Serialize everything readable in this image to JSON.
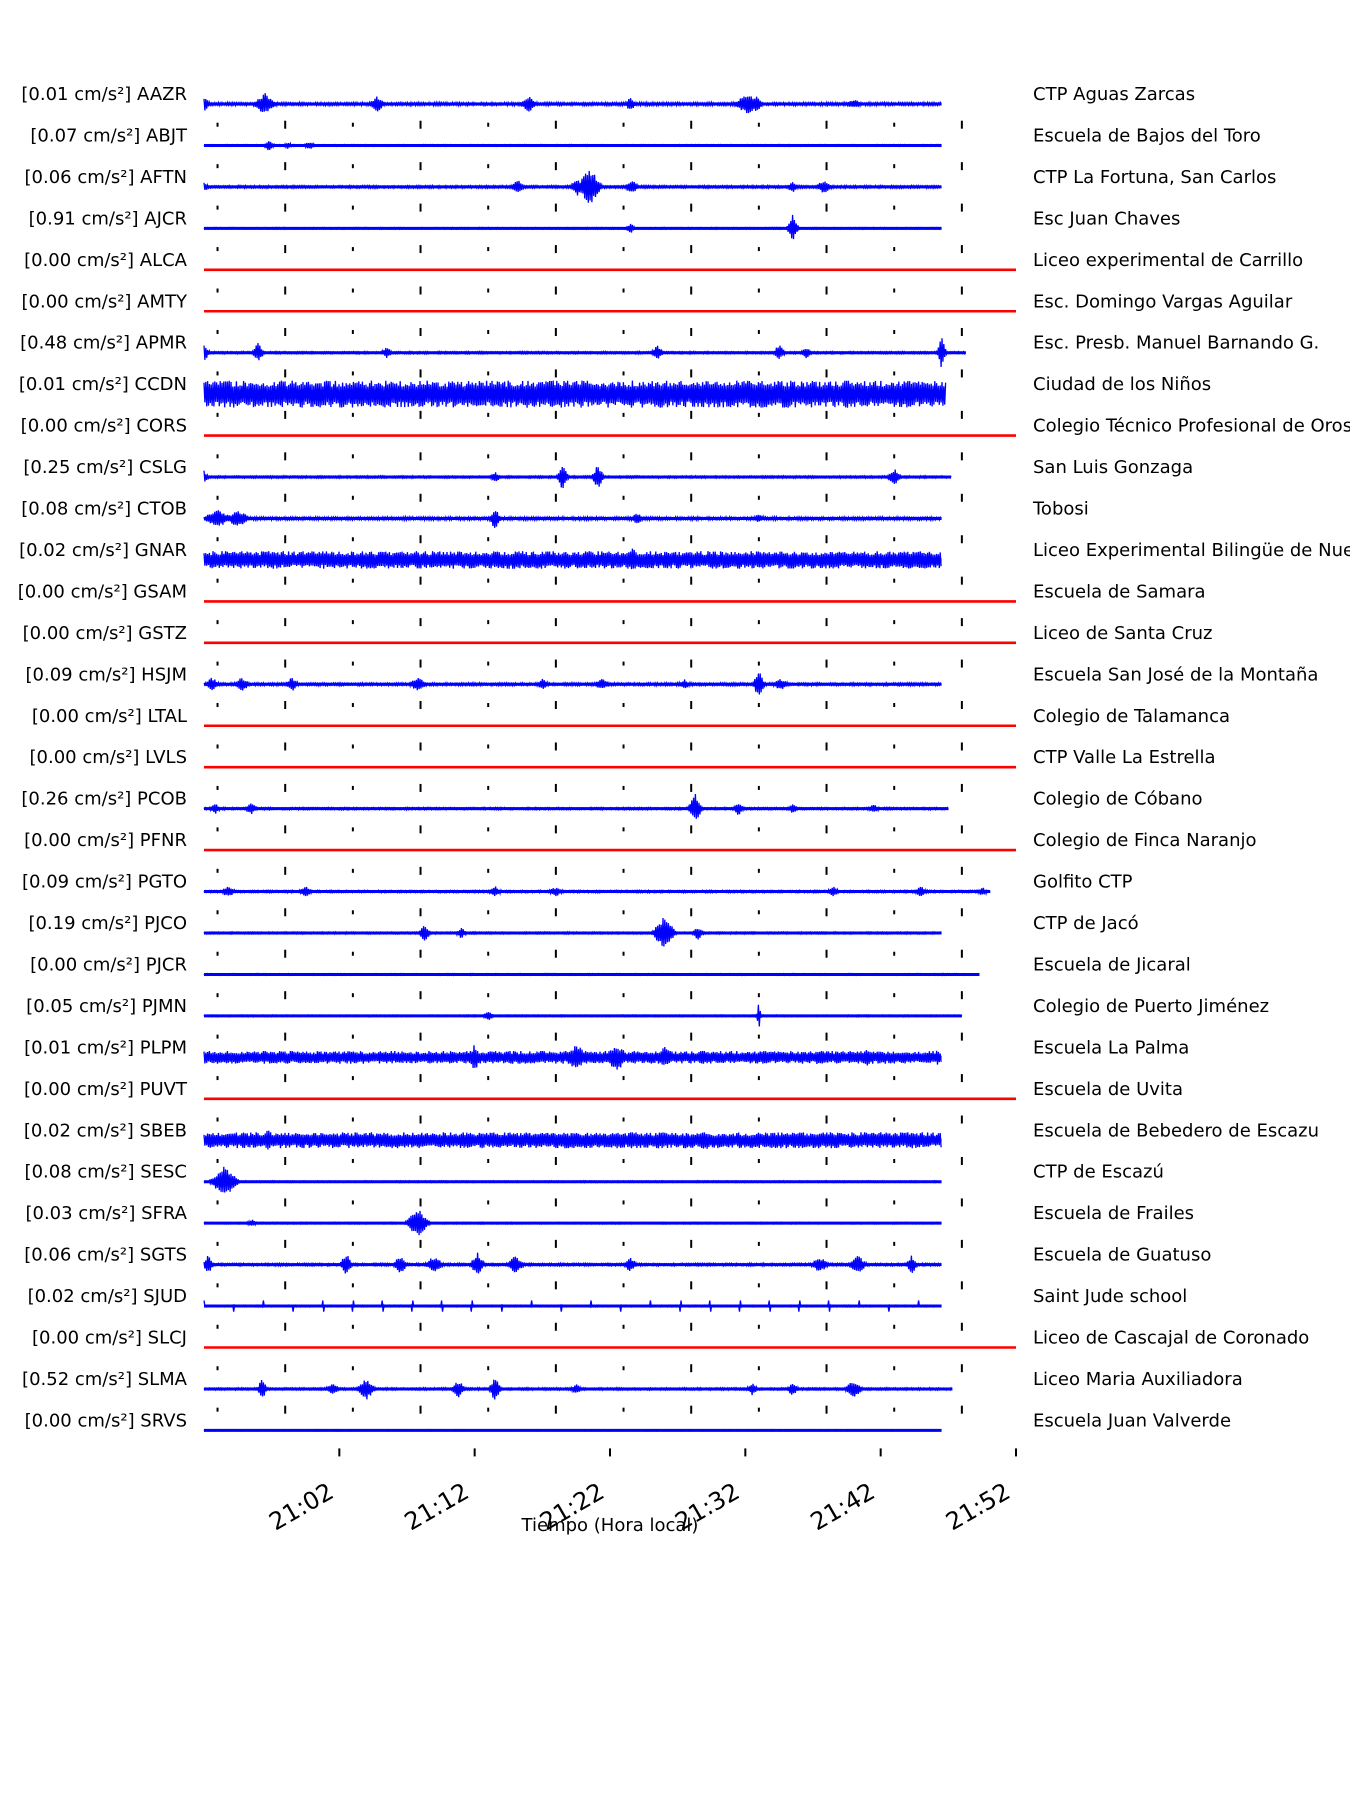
{
  "chart_data": {
    "type": "line",
    "xlabel": "Tiempo (Hora local)",
    "x_ticks": [
      "21:02",
      "21:12",
      "21:22",
      "21:32",
      "21:42",
      "21:52"
    ],
    "x_range_minutes": [
      0,
      60
    ],
    "active_color": "#0000ff",
    "inactive_color": "#ff0000",
    "stations": [
      {
        "id": "AAZR",
        "value": "[0.01 cm/s²] AAZR",
        "name": "CTP Aguas Zarcas",
        "active": true,
        "end_min": 54.5,
        "amp": 0.18,
        "noise": 0.1,
        "events": [
          [
            0,
            0.45,
            0.6
          ],
          [
            4.5,
            0.7,
            1.0
          ],
          [
            12.8,
            0.5,
            0.7
          ],
          [
            24,
            0.5,
            0.8
          ],
          [
            31.5,
            0.45,
            0.5
          ],
          [
            40.2,
            0.7,
            1.2
          ],
          [
            40.8,
            0.55,
            0.6
          ],
          [
            48,
            0.3,
            0.8
          ]
        ]
      },
      {
        "id": "ABJT",
        "value": "[0.07 cm/s²] ABJT",
        "name": "Escuela de Bajos del Toro",
        "active": true,
        "end_min": 54.5,
        "amp": 0.06,
        "noise": 0.05,
        "events": [
          [
            4.8,
            0.35,
            0.5
          ],
          [
            6.2,
            0.22,
            0.4
          ],
          [
            7.8,
            0.28,
            0.5
          ]
        ]
      },
      {
        "id": "AFTN",
        "value": "[0.06 cm/s²] AFTN",
        "name": "CTP La Fortuna, San Carlos",
        "active": true,
        "end_min": 54.5,
        "amp": 0.15,
        "noise": 0.08,
        "events": [
          [
            0,
            0.35,
            0.4
          ],
          [
            28.5,
            1.2,
            1.0
          ],
          [
            27.6,
            0.55,
            0.6
          ],
          [
            23.2,
            0.45,
            0.6
          ],
          [
            31.6,
            0.45,
            0.6
          ],
          [
            45.8,
            0.45,
            0.7
          ],
          [
            43.5,
            0.35,
            0.5
          ]
        ]
      },
      {
        "id": "AJCR",
        "value": "[0.91 cm/s²] AJCR",
        "name": "Esc Juan Chaves",
        "active": true,
        "end_min": 54.5,
        "amp": 0.06,
        "noise": 0.05,
        "events": [
          [
            31.5,
            0.35,
            0.4
          ],
          [
            43.5,
            0.9,
            0.5
          ]
        ]
      },
      {
        "id": "ALCA",
        "value": "[0.00 cm/s²] ALCA",
        "name": "Liceo experimental de Carrillo",
        "active": false
      },
      {
        "id": "AMTY",
        "value": "[0.00 cm/s²] AMTY",
        "name": "Esc. Domingo Vargas Aguilar",
        "active": false
      },
      {
        "id": "APMR",
        "value": "[0.48 cm/s²] APMR",
        "name": "Esc. Presb. Manuel Barnando G.",
        "active": true,
        "end_min": 56.3,
        "amp": 0.12,
        "noise": 0.07,
        "events": [
          [
            0,
            0.55,
            0.5
          ],
          [
            4.0,
            0.65,
            0.5
          ],
          [
            13.5,
            0.35,
            0.5
          ],
          [
            33.5,
            0.55,
            0.5
          ],
          [
            42.5,
            0.55,
            0.5
          ],
          [
            44.5,
            0.4,
            0.5
          ],
          [
            54.5,
            1.0,
            0.4
          ]
        ]
      },
      {
        "id": "CCDN",
        "value": "[0.01 cm/s²] CCDN",
        "name": "Ciudad de los Niños",
        "active": true,
        "end_min": 54.8,
        "amp": 0.85,
        "noise": 0.12,
        "events": []
      },
      {
        "id": "CORS",
        "value": "[0.00 cm/s²] CORS",
        "name": "Colegio Técnico Profesional de Orosi",
        "active": false
      },
      {
        "id": "CSLG",
        "value": "[0.25 cm/s²] CSLG",
        "name": "San Luis Gonzaga",
        "active": true,
        "end_min": 55.2,
        "amp": 0.12,
        "noise": 0.07,
        "events": [
          [
            0,
            0.4,
            0.4
          ],
          [
            26.5,
            0.85,
            0.5
          ],
          [
            29.1,
            0.8,
            0.5
          ],
          [
            51,
            0.55,
            0.6
          ],
          [
            21.5,
            0.35,
            0.5
          ]
        ]
      },
      {
        "id": "CTOB",
        "value": "[0.08 cm/s²] CTOB",
        "name": "Tobosi",
        "active": true,
        "end_min": 54.5,
        "amp": 0.18,
        "noise": 0.1,
        "events": [
          [
            1.0,
            0.6,
            1.2
          ],
          [
            2.5,
            0.6,
            1.0
          ],
          [
            21.5,
            0.7,
            0.5
          ],
          [
            32.0,
            0.35,
            0.6
          ],
          [
            41,
            0.3,
            0.6
          ]
        ]
      },
      {
        "id": "GNAR",
        "value": "[0.02 cm/s²] GNAR",
        "name": "Liceo Experimental Bilingüe de Nuevo Arenal",
        "active": true,
        "end_min": 54.5,
        "amp": 0.55,
        "noise": 0.1,
        "events": [
          [
            31.7,
            0.85,
            0.6
          ]
        ]
      },
      {
        "id": "GSAM",
        "value": "[0.00 cm/s²] GSAM",
        "name": "Escuela de Samara",
        "active": false
      },
      {
        "id": "GSTZ",
        "value": "[0.00 cm/s²] GSTZ",
        "name": "Liceo de Santa Cruz",
        "active": false
      },
      {
        "id": "HSJM",
        "value": "[0.09 cm/s²] HSJM",
        "name": "Escuela San José de la Montaña",
        "active": true,
        "end_min": 54.5,
        "amp": 0.15,
        "noise": 0.09,
        "events": [
          [
            0.6,
            0.45,
            0.6
          ],
          [
            2.8,
            0.45,
            0.7
          ],
          [
            6.5,
            0.45,
            0.6
          ],
          [
            15.8,
            0.45,
            0.8
          ],
          [
            25,
            0.35,
            0.6
          ],
          [
            29.4,
            0.35,
            0.8
          ],
          [
            35.5,
            0.35,
            0.6
          ],
          [
            41,
            0.9,
            0.5
          ],
          [
            42.6,
            0.4,
            0.7
          ]
        ]
      },
      {
        "id": "LTAL",
        "value": "[0.00 cm/s²] LTAL",
        "name": "Colegio de Talamanca",
        "active": false
      },
      {
        "id": "LVLS",
        "value": "[0.00 cm/s²] LVLS",
        "name": "CTP Valle La Estrella",
        "active": false
      },
      {
        "id": "PCOB",
        "value": "[0.26 cm/s²] PCOB",
        "name": "Colegio de Cóbano",
        "active": true,
        "end_min": 55.0,
        "amp": 0.12,
        "noise": 0.07,
        "events": [
          [
            0.8,
            0.35,
            0.5
          ],
          [
            3.5,
            0.35,
            0.6
          ],
          [
            36.3,
            0.95,
            0.6
          ],
          [
            39.5,
            0.45,
            0.5
          ],
          [
            43.5,
            0.3,
            0.5
          ],
          [
            49.5,
            0.3,
            0.5
          ]
        ]
      },
      {
        "id": "PFNR",
        "value": "[0.00 cm/s²] PFNR",
        "name": "Colegio de Finca Naranjo",
        "active": false
      },
      {
        "id": "PGTO",
        "value": "[0.09 cm/s²] PGTO",
        "name": "Golfito CTP",
        "active": true,
        "end_min": 58.1,
        "amp": 0.14,
        "noise": 0.07,
        "events": [
          [
            1.8,
            0.4,
            0.6
          ],
          [
            7.5,
            0.35,
            0.6
          ],
          [
            21.5,
            0.35,
            0.6
          ],
          [
            26,
            0.3,
            0.8
          ],
          [
            46.5,
            0.4,
            0.5
          ],
          [
            53,
            0.35,
            0.6
          ],
          [
            57.5,
            0.3,
            0.5
          ]
        ]
      },
      {
        "id": "PJCO",
        "value": "[0.19 cm/s²] PJCO",
        "name": "CTP de Jacó",
        "active": true,
        "end_min": 54.5,
        "amp": 0.12,
        "noise": 0.06,
        "events": [
          [
            16.3,
            0.55,
            0.5
          ],
          [
            19,
            0.35,
            0.5
          ],
          [
            34,
            1.1,
            1.0
          ],
          [
            36.5,
            0.45,
            0.5
          ]
        ]
      },
      {
        "id": "PJCR",
        "value": "[0.00 cm/s²] PJCR",
        "name": "Escuela de Jicaral",
        "active": true,
        "end_min": 57.3,
        "amp": 0.1,
        "noise": 0.05,
        "events": []
      },
      {
        "id": "PJMN",
        "value": "[0.05 cm/s²] PJMN",
        "name": "Colegio de Puerto Jiménez",
        "active": true,
        "end_min": 56.0,
        "amp": 0.07,
        "noise": 0.05,
        "events": [
          [
            21,
            0.3,
            0.5
          ],
          [
            41,
            0.9,
            0.2
          ]
        ]
      },
      {
        "id": "PLPM",
        "value": "[0.01 cm/s²] PLPM",
        "name": "Escuela La Palma",
        "active": true,
        "end_min": 54.5,
        "amp": 0.4,
        "noise": 0.12,
        "events": [
          [
            20,
            0.9,
            0.5
          ],
          [
            27.5,
            0.9,
            1.0
          ],
          [
            30.5,
            0.9,
            1.0
          ],
          [
            34,
            0.75,
            0.8
          ],
          [
            45.5,
            0.55,
            1.0
          ],
          [
            49,
            0.55,
            0.8
          ],
          [
            54.2,
            0.5,
            0.4
          ]
        ]
      },
      {
        "id": "PUVT",
        "value": "[0.00 cm/s²] PUVT",
        "name": "Escuela de Uvita",
        "active": false
      },
      {
        "id": "SBEB",
        "value": "[0.02 cm/s²] SBEB",
        "name": "Escuela de Bebedero de Escazu",
        "active": true,
        "end_min": 54.5,
        "amp": 0.5,
        "noise": 0.1,
        "events": [
          [
            4.7,
            0.8,
            0.4
          ],
          [
            37,
            0.7,
            1.0
          ]
        ]
      },
      {
        "id": "SESC",
        "value": "[0.08 cm/s²] SESC",
        "name": "CTP de Escazú",
        "active": true,
        "end_min": 54.5,
        "amp": 0.08,
        "noise": 0.05,
        "events": [
          [
            1.5,
            1.0,
            1.2
          ]
        ]
      },
      {
        "id": "SFRA",
        "value": "[0.03 cm/s²] SFRA",
        "name": "Escuela de Frailes",
        "active": true,
        "end_min": 54.5,
        "amp": 0.08,
        "noise": 0.05,
        "events": [
          [
            15.8,
            0.95,
            1.0
          ],
          [
            3.5,
            0.25,
            0.5
          ]
        ]
      },
      {
        "id": "SGTS",
        "value": "[0.06 cm/s²] SGTS",
        "name": "Escuela de Guatuso",
        "active": true,
        "end_min": 54.5,
        "amp": 0.15,
        "noise": 0.08,
        "events": [
          [
            0.3,
            0.6,
            0.5
          ],
          [
            10.5,
            0.8,
            0.5
          ],
          [
            14.5,
            0.6,
            0.6
          ],
          [
            17,
            0.55,
            0.8
          ],
          [
            20.2,
            0.85,
            0.6
          ],
          [
            23,
            0.55,
            0.8
          ],
          [
            31.5,
            0.5,
            0.6
          ],
          [
            45.5,
            0.5,
            0.8
          ],
          [
            48.3,
            0.6,
            0.8
          ],
          [
            52.3,
            0.6,
            0.5
          ]
        ]
      },
      {
        "id": "SJUD",
        "value": "[0.02 cm/s²] SJUD",
        "name": "Saint Jude school",
        "active": true,
        "end_min": 54.5,
        "amp": 0.1,
        "noise": 0.05,
        "events": []
      },
      {
        "id": "SLCJ",
        "value": "[0.00 cm/s²] SLCJ",
        "name": "Liceo de Cascajal de Coronado",
        "active": false
      },
      {
        "id": "SLMA",
        "value": "[0.52 cm/s²] SLMA",
        "name": "Liceo Maria Auxiliadora",
        "active": true,
        "end_min": 55.3,
        "amp": 0.12,
        "noise": 0.07,
        "events": [
          [
            4.3,
            0.75,
            0.4
          ],
          [
            9.5,
            0.4,
            0.6
          ],
          [
            12,
            0.7,
            0.8
          ],
          [
            18.8,
            0.55,
            0.6
          ],
          [
            21.5,
            0.8,
            0.5
          ],
          [
            27.5,
            0.35,
            0.5
          ],
          [
            40.5,
            0.4,
            0.5
          ],
          [
            43.5,
            0.5,
            0.5
          ],
          [
            48,
            0.55,
            0.8
          ]
        ]
      },
      {
        "id": "SRVS",
        "value": "[0.00 cm/s²] SRVS",
        "name": "Escuela Juan Valverde",
        "active": true,
        "end_min": 54.5,
        "amp": 0.05,
        "noise": 0.04,
        "events": []
      }
    ]
  }
}
